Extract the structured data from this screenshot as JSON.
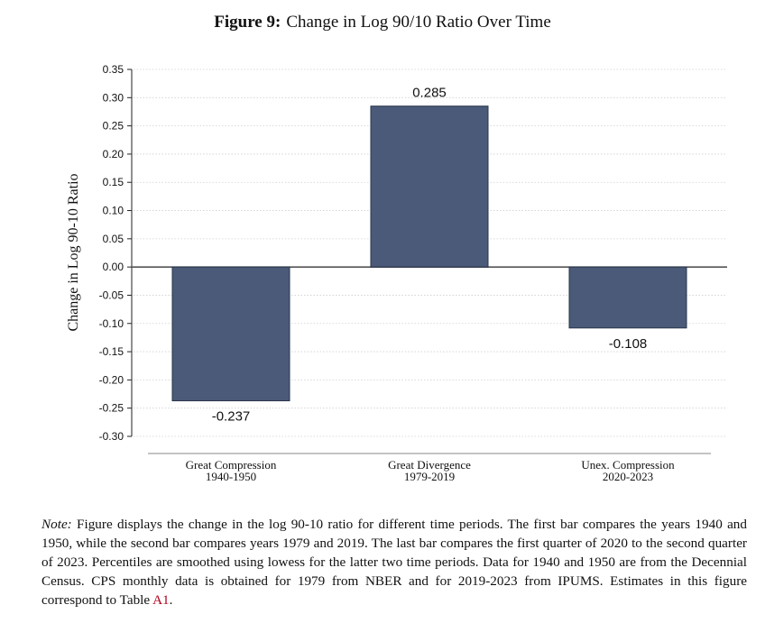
{
  "figure": {
    "number": "Figure 9:",
    "title": "Change in Log 90/10 Ratio Over Time"
  },
  "note": {
    "label": "Note:",
    "text": "Figure displays the change in the log 90-10 ratio for different time periods. The first bar compares the years 1940 and 1950, while the second bar compares years 1979 and 2019. The last bar compares the first quarter of 2020 to the second quarter of 2023. Percentiles are smoothed using lowess for the latter two time periods. Data for 1940 and 1950 are from the Decennial Census. CPS monthly data is obtained for 1979 from NBER and for 2019-2023 from IPUMS. Estimates in this figure correspond to Table",
    "ref": "A1",
    "end": "."
  },
  "colors": {
    "bar": "#4a5a78",
    "bar_edge": "#2a354b",
    "zero_line": "#555555",
    "grid": "#cfcfcf",
    "ref_link": "#b0001c"
  },
  "chart_data": {
    "type": "bar",
    "title": "",
    "xlabel": "",
    "ylabel": "Change in Log 90-10 Ratio",
    "categories": [
      [
        "Great Compression",
        "1940-1950"
      ],
      [
        "Great Divergence",
        "1979-2019"
      ],
      [
        "Unex. Compression",
        "2020-2023"
      ]
    ],
    "values": [
      -0.237,
      0.285,
      -0.108
    ],
    "value_labels": [
      "-0.237",
      "0.285",
      "-0.108"
    ],
    "ylim": [
      -0.3,
      0.35
    ],
    "yticks": [
      0.35,
      0.3,
      0.25,
      0.2,
      0.15,
      0.1,
      0.05,
      0.0,
      -0.05,
      -0.1,
      -0.15,
      -0.2,
      -0.25,
      -0.3
    ],
    "ytick_labels": [
      "0.35",
      "0.30",
      "0.25",
      "0.20",
      "0.15",
      "0.10",
      "0.05",
      "0.00",
      "-0.05",
      "-0.10",
      "-0.15",
      "-0.20",
      "-0.25",
      "-0.30"
    ],
    "grid": true,
    "legend": "none"
  }
}
